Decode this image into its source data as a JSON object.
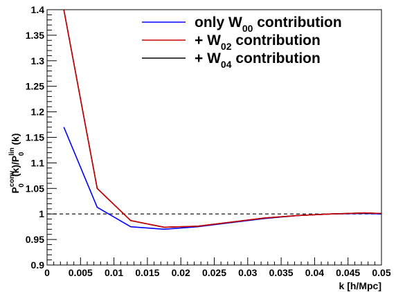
{
  "chart_data": {
    "type": "line",
    "xlabel": "k [h/Mpc]",
    "ylabel": {
      "base1": "P",
      "sup1": "conv",
      "sub1": "0",
      "mid": "(k)/P",
      "sup2": "lin",
      "sub2": "0",
      "tail": "(k)"
    },
    "xlim": [
      0,
      0.05
    ],
    "ylim": [
      0.9,
      1.4
    ],
    "xticks": [
      "0",
      "0.005",
      "0.01",
      "0.015",
      "0.02",
      "0.025",
      "0.03",
      "0.035",
      "0.04",
      "0.045",
      "0.05"
    ],
    "xtick_values": [
      0,
      0.005,
      0.01,
      0.015,
      0.02,
      0.025,
      0.03,
      0.035,
      0.04,
      0.045,
      0.05
    ],
    "yticks": [
      "0.9",
      "0.95",
      "1",
      "1.05",
      "1.1",
      "1.15",
      "1.2",
      "1.25",
      "1.3",
      "1.35",
      "1.4"
    ],
    "ytick_values": [
      0.9,
      0.95,
      1.0,
      1.05,
      1.1,
      1.15,
      1.2,
      1.25,
      1.3,
      1.35,
      1.4
    ],
    "reference_line": {
      "y": 1.0,
      "style": "dashed",
      "color": "#000000"
    },
    "series": [
      {
        "color": "#0000ff",
        "x": [
          0.0025,
          0.0075,
          0.0125,
          0.0175,
          0.0225,
          0.0275,
          0.0325,
          0.0375,
          0.0425,
          0.0475,
          0.05
        ],
        "y": [
          1.17,
          1.013,
          0.975,
          0.97,
          0.975,
          0.983,
          0.991,
          0.997,
          1.0,
          1.001,
          1.0
        ]
      },
      {
        "color": "#000000",
        "x": [
          0.0025,
          0.0075,
          0.0125,
          0.0175,
          0.0225,
          0.0275,
          0.0325,
          0.0375,
          0.0425,
          0.0475,
          0.05
        ],
        "y": [
          1.4,
          1.05,
          0.987,
          0.974,
          0.976,
          0.984,
          0.992,
          0.997,
          1.0,
          1.002,
          1.001
        ]
      },
      {
        "color": "#cc0000",
        "x": [
          0.0025,
          0.0075,
          0.0125,
          0.0175,
          0.0225,
          0.0275,
          0.0325,
          0.0375,
          0.0425,
          0.0475,
          0.05
        ],
        "y": [
          1.4,
          1.05,
          0.987,
          0.974,
          0.976,
          0.984,
          0.992,
          0.997,
          1.0,
          1.002,
          1.001
        ]
      }
    ],
    "legend": {
      "placement": "top-right",
      "entries": [
        {
          "color": "#0000ff",
          "prefix": "only W",
          "sub": "00",
          "suffix": " contribution"
        },
        {
          "color": "#cc0000",
          "prefix": "+ W",
          "sub": "02",
          "suffix": " contribution"
        },
        {
          "color": "#000000",
          "prefix": "+ W",
          "sub": "04",
          "suffix": " contribution"
        }
      ]
    }
  }
}
